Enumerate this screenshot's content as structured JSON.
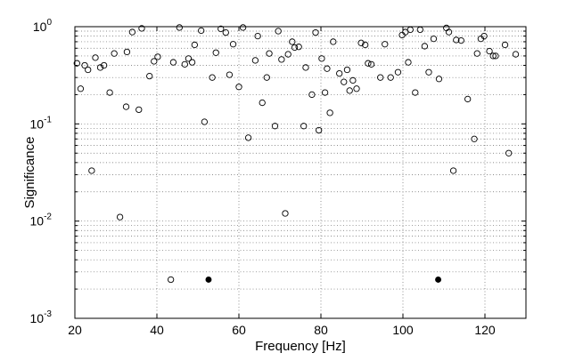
{
  "chart_data": {
    "type": "scatter",
    "title": "",
    "xlabel": "Frequency [Hz]",
    "ylabel": "Significance",
    "xlim": [
      20,
      130
    ],
    "ylim": [
      0.001,
      1
    ],
    "yscale": "log",
    "grid": true,
    "legend": "none",
    "x_ticks": [
      "20",
      "40",
      "60",
      "80",
      "100",
      "120"
    ],
    "y_ticks": [
      {
        "base": "10",
        "exp": "0"
      },
      {
        "base": "10",
        "exp": "-1"
      },
      {
        "base": "10",
        "exp": "-2"
      },
      {
        "base": "10",
        "exp": "-3"
      }
    ],
    "series": [
      {
        "marker": "open-circle",
        "color": "#000000",
        "points": [
          [
            20.5,
            0.42
          ],
          [
            21.4,
            0.23
          ],
          [
            22.4,
            0.4
          ],
          [
            23.2,
            0.36
          ],
          [
            24.1,
            0.033
          ],
          [
            25.0,
            0.48
          ],
          [
            26.2,
            0.38
          ],
          [
            27.1,
            0.4
          ],
          [
            28.5,
            0.21
          ],
          [
            29.6,
            0.53
          ],
          [
            31.0,
            0.011
          ],
          [
            32.5,
            0.15
          ],
          [
            32.7,
            0.55
          ],
          [
            34.0,
            0.88
          ],
          [
            35.6,
            0.14
          ],
          [
            36.3,
            0.96
          ],
          [
            38.2,
            0.31
          ],
          [
            39.3,
            0.44
          ],
          [
            40.2,
            0.49
          ],
          [
            44.0,
            0.43
          ],
          [
            45.5,
            0.98
          ],
          [
            46.8,
            0.41
          ],
          [
            47.7,
            0.47
          ],
          [
            48.6,
            0.43
          ],
          [
            49.2,
            0.65
          ],
          [
            50.8,
            0.91
          ],
          [
            51.6,
            0.105
          ],
          [
            53.5,
            0.3
          ],
          [
            54.4,
            0.54
          ],
          [
            55.6,
            0.95
          ],
          [
            56.8,
            0.87
          ],
          [
            57.7,
            0.32
          ],
          [
            58.6,
            0.66
          ],
          [
            60.0,
            0.24
          ],
          [
            61.0,
            0.98
          ],
          [
            62.3,
            0.072
          ],
          [
            64.0,
            0.45
          ],
          [
            64.6,
            0.8
          ],
          [
            65.7,
            0.165
          ],
          [
            66.8,
            0.3
          ],
          [
            67.4,
            0.53
          ],
          [
            68.8,
            0.095
          ],
          [
            69.6,
            0.9
          ],
          [
            70.4,
            0.46
          ],
          [
            71.3,
            0.012
          ],
          [
            72.0,
            0.52
          ],
          [
            73.0,
            0.7
          ],
          [
            73.6,
            0.61
          ],
          [
            74.6,
            0.62
          ],
          [
            75.8,
            0.095
          ],
          [
            76.3,
            0.38
          ],
          [
            77.8,
            0.2
          ],
          [
            78.7,
            0.87
          ],
          [
            79.5,
            0.086
          ],
          [
            80.2,
            0.47
          ],
          [
            81.0,
            0.21
          ],
          [
            81.5,
            0.37
          ],
          [
            82.2,
            0.13
          ],
          [
            83.0,
            0.7
          ],
          [
            84.5,
            0.33
          ],
          [
            85.6,
            0.27
          ],
          [
            86.4,
            0.36
          ],
          [
            87.0,
            0.22
          ],
          [
            87.8,
            0.28
          ],
          [
            88.7,
            0.23
          ],
          [
            89.8,
            0.68
          ],
          [
            90.8,
            0.65
          ],
          [
            91.5,
            0.42
          ],
          [
            92.3,
            0.41
          ],
          [
            94.5,
            0.3
          ],
          [
            95.6,
            0.66
          ],
          [
            97.0,
            0.3
          ],
          [
            98.8,
            0.34
          ],
          [
            99.8,
            0.82
          ],
          [
            100.6,
            0.88
          ],
          [
            101.3,
            0.43
          ],
          [
            101.8,
            0.93
          ],
          [
            103.0,
            0.21
          ],
          [
            104.2,
            0.93
          ],
          [
            105.3,
            0.63
          ],
          [
            106.3,
            0.34
          ],
          [
            107.5,
            0.75
          ],
          [
            108.8,
            0.29
          ],
          [
            110.6,
            0.97
          ],
          [
            111.2,
            0.88
          ],
          [
            112.3,
            0.033
          ],
          [
            113.0,
            0.73
          ],
          [
            114.2,
            0.72
          ],
          [
            115.8,
            0.18
          ],
          [
            117.4,
            0.07
          ],
          [
            118.1,
            0.53
          ],
          [
            119.0,
            0.75
          ],
          [
            119.8,
            0.8
          ],
          [
            121.1,
            0.56
          ],
          [
            122.0,
            0.5
          ],
          [
            122.6,
            0.5
          ],
          [
            124.9,
            0.65
          ],
          [
            125.8,
            0.05
          ],
          [
            127.5,
            0.52
          ]
        ]
      },
      {
        "marker": "filled-circle",
        "color": "#000000",
        "points": [
          [
            52.6,
            0.0025
          ],
          [
            108.6,
            0.0025
          ]
        ]
      },
      {
        "marker": "open-circle",
        "color": "#000000",
        "points": [
          [
            43.4,
            0.0025
          ]
        ]
      }
    ]
  }
}
